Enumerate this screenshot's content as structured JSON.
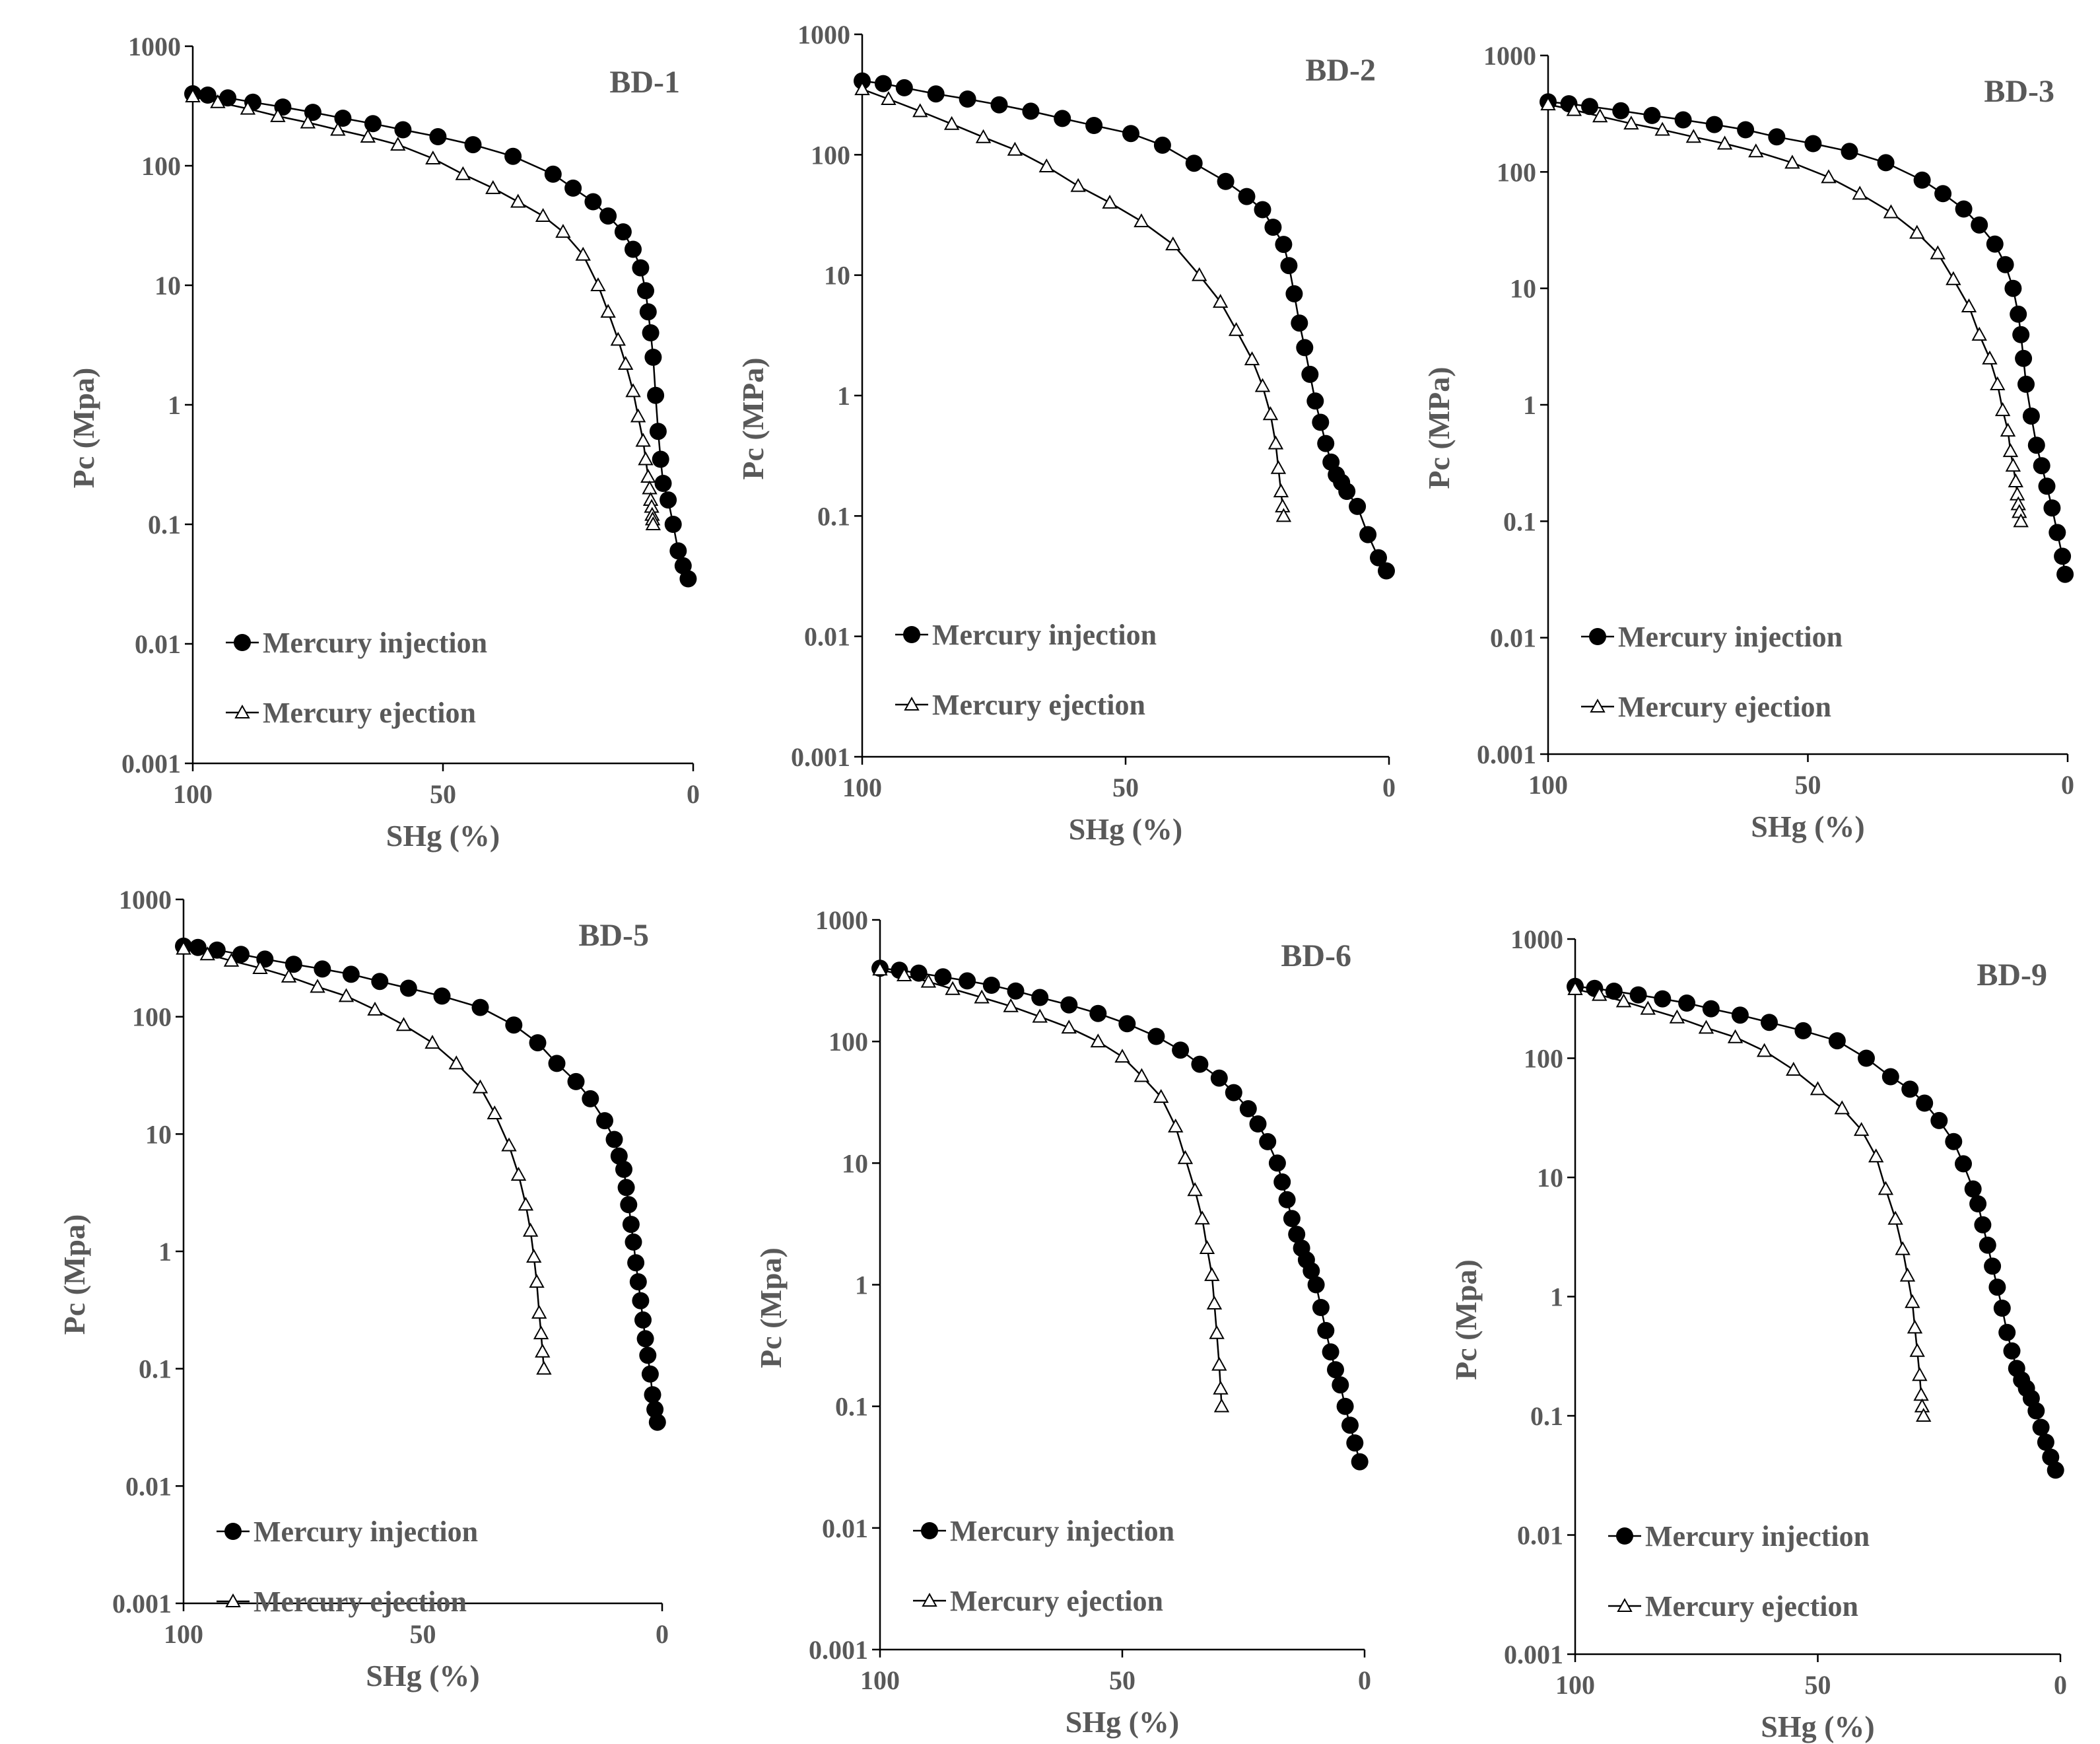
{
  "figure": {
    "name": "mercury-intrusion-capillary-pressure-curves"
  },
  "chart_data": [
    {
      "type": "line",
      "title": "BD-1",
      "xlabel": "SHg (%)",
      "ylabel": "Pc (Mpa)",
      "xlim": [
        100,
        0
      ],
      "ylim": [
        0.001,
        1000
      ],
      "yscale": "log",
      "x_ticks": [
        "100",
        "50",
        "0"
      ],
      "y_ticks": [
        "0.001",
        "0.01",
        "0.1",
        "1",
        "10",
        "100",
        "1000"
      ],
      "legend_position": "bottom-left",
      "series": [
        {
          "name": "Mercury injection",
          "marker": "filled-circle",
          "x": [
            100,
            97,
            93,
            88,
            82,
            76,
            70,
            64,
            58,
            51,
            44,
            36,
            28,
            24,
            20,
            17,
            14,
            12,
            10.5,
            9.5,
            9,
            8.5,
            8,
            7.5,
            7,
            6.5,
            6,
            5,
            4,
            3,
            2,
            1
          ],
          "y": [
            400,
            390,
            370,
            340,
            310,
            280,
            250,
            225,
            200,
            175,
            150,
            120,
            85,
            65,
            50,
            38,
            28,
            20,
            14,
            9,
            6,
            4,
            2.5,
            1.2,
            0.6,
            0.35,
            0.22,
            0.16,
            0.1,
            0.06,
            0.045,
            0.035
          ]
        },
        {
          "name": "Mercury ejection",
          "marker": "hollow-triangle",
          "x": [
            100,
            95,
            89,
            83,
            77,
            71,
            65,
            59,
            52,
            46,
            40,
            35,
            30,
            26,
            22,
            19,
            17,
            15,
            13.5,
            12,
            11,
            10,
            9.5,
            9,
            8.7,
            8.5,
            8.3,
            8.2,
            8.1,
            8
          ],
          "y": [
            380,
            340,
            300,
            260,
            230,
            200,
            175,
            150,
            115,
            85,
            65,
            50,
            38,
            28,
            18,
            10,
            6,
            3.5,
            2.2,
            1.3,
            0.8,
            0.5,
            0.35,
            0.25,
            0.2,
            0.16,
            0.14,
            0.12,
            0.11,
            0.1
          ]
        }
      ]
    },
    {
      "type": "line",
      "title": "BD-2",
      "xlabel": "SHg (%)",
      "ylabel": "Pc  (MPa)",
      "xlim": [
        100,
        0
      ],
      "ylim": [
        0.001,
        1000
      ],
      "yscale": "log",
      "x_ticks": [
        "100",
        "50",
        "0"
      ],
      "y_ticks": [
        "0.001",
        "0.01",
        "0.1",
        "1",
        "10",
        "100",
        "1000"
      ],
      "legend_position": "bottom-left",
      "series": [
        {
          "name": "Mercury injection",
          "marker": "filled-circle",
          "x": [
            100,
            96,
            92,
            86,
            80,
            74,
            68,
            62,
            56,
            49,
            43,
            37,
            31,
            27,
            24,
            22,
            20,
            19,
            18,
            17,
            16,
            15,
            14,
            13,
            12,
            11,
            10,
            9,
            8,
            6,
            4,
            2,
            0.5
          ],
          "y": [
            410,
            390,
            360,
            320,
            290,
            260,
            230,
            200,
            175,
            150,
            120,
            85,
            60,
            45,
            35,
            25,
            18,
            12,
            7,
            4,
            2.5,
            1.5,
            0.9,
            0.6,
            0.4,
            0.28,
            0.22,
            0.19,
            0.16,
            0.12,
            0.07,
            0.045,
            0.035
          ]
        },
        {
          "name": "Mercury ejection",
          "marker": "hollow-triangle",
          "x": [
            100,
            95,
            89,
            83,
            77,
            71,
            65,
            59,
            53,
            47,
            41,
            36,
            32,
            29,
            26,
            24,
            22.5,
            21.5,
            21,
            20.5,
            20.2,
            20
          ],
          "y": [
            350,
            290,
            230,
            180,
            140,
            110,
            80,
            55,
            40,
            28,
            18,
            10,
            6,
            3.5,
            2,
            1.2,
            0.7,
            0.4,
            0.25,
            0.16,
            0.12,
            0.1
          ]
        }
      ]
    },
    {
      "type": "line",
      "title": "BD-3",
      "xlabel": "SHg (%)",
      "ylabel": "Pc  (MPa)",
      "xlim": [
        100,
        0
      ],
      "ylim": [
        0.001,
        1000
      ],
      "yscale": "log",
      "x_ticks": [
        "100",
        "50",
        "0"
      ],
      "y_ticks": [
        "0.001",
        "0.01",
        "0.1",
        "1",
        "10",
        "100",
        "1000"
      ],
      "legend_position": "bottom-left",
      "series": [
        {
          "name": "Mercury injection",
          "marker": "filled-circle",
          "x": [
            100,
            96,
            92,
            86,
            80,
            74,
            68,
            62,
            56,
            49,
            42,
            35,
            28,
            24,
            20,
            17,
            14,
            12,
            10.5,
            9.5,
            9,
            8.5,
            8,
            7,
            6,
            5,
            4,
            3,
            2,
            1,
            0.5
          ],
          "y": [
            400,
            385,
            365,
            335,
            305,
            280,
            255,
            230,
            200,
            175,
            150,
            120,
            85,
            65,
            48,
            35,
            24,
            16,
            10,
            6,
            4,
            2.5,
            1.5,
            0.8,
            0.45,
            0.3,
            0.2,
            0.13,
            0.08,
            0.05,
            0.035
          ]
        },
        {
          "name": "Mercury ejection",
          "marker": "hollow-triangle",
          "x": [
            100,
            95,
            90,
            84,
            78,
            72,
            66,
            60,
            53,
            46,
            40,
            34,
            29,
            25,
            22,
            19,
            17,
            15,
            13.5,
            12.5,
            11.5,
            11,
            10.5,
            10,
            9.7,
            9.5,
            9.3,
            9
          ],
          "y": [
            380,
            340,
            300,
            260,
            230,
            200,
            175,
            150,
            120,
            90,
            65,
            45,
            30,
            20,
            12,
            7,
            4,
            2.5,
            1.5,
            0.9,
            0.6,
            0.4,
            0.3,
            0.22,
            0.17,
            0.14,
            0.12,
            0.1
          ]
        }
      ]
    },
    {
      "type": "line",
      "title": "BD-5",
      "xlabel": "SHg (%)",
      "ylabel": "Pc (Mpa)",
      "xlim": [
        100,
        0
      ],
      "ylim": [
        0.001,
        1000
      ],
      "yscale": "log",
      "x_ticks": [
        "100",
        "50",
        "0"
      ],
      "y_ticks": [
        "0.001",
        "0.01",
        "0.1",
        "1",
        "10",
        "100",
        "1000"
      ],
      "legend_position": "bottom-left",
      "series": [
        {
          "name": "Mercury injection",
          "marker": "filled-circle",
          "x": [
            100,
            97,
            93,
            88,
            83,
            77,
            71,
            65,
            59,
            53,
            46,
            38,
            31,
            26,
            22,
            18,
            15,
            12,
            10,
            9,
            8,
            7.5,
            7,
            6.5,
            6,
            5.5,
            5,
            4.5,
            4,
            3.5,
            3,
            2.5,
            2,
            1.5,
            1
          ],
          "y": [
            400,
            390,
            370,
            340,
            310,
            280,
            255,
            230,
            200,
            175,
            150,
            120,
            85,
            60,
            40,
            28,
            20,
            13,
            9,
            6.5,
            5,
            3.5,
            2.5,
            1.7,
            1.2,
            0.8,
            0.55,
            0.38,
            0.26,
            0.18,
            0.13,
            0.09,
            0.06,
            0.045,
            0.035
          ]
        },
        {
          "name": "Mercury ejection",
          "marker": "hollow-triangle",
          "x": [
            100,
            95,
            90,
            84,
            78,
            72,
            66,
            60,
            54,
            48,
            43,
            38,
            35,
            32,
            30,
            28.5,
            27.5,
            26.8,
            26.2,
            25.7,
            25.3,
            25,
            24.7
          ],
          "y": [
            380,
            340,
            300,
            260,
            220,
            180,
            150,
            115,
            85,
            60,
            40,
            25,
            15,
            8,
            4.5,
            2.5,
            1.5,
            0.9,
            0.55,
            0.3,
            0.2,
            0.14,
            0.1
          ]
        }
      ]
    },
    {
      "type": "line",
      "title": "BD-6",
      "xlabel": "SHg (%)",
      "ylabel": "Pc (Mpa)",
      "xlim": [
        100,
        0
      ],
      "ylim": [
        0.001,
        1000
      ],
      "yscale": "log",
      "x_ticks": [
        "100",
        "50",
        "0"
      ],
      "y_ticks": [
        "0.001",
        "0.01",
        "0.1",
        "1",
        "10",
        "100",
        "1000"
      ],
      "legend_position": "bottom-left",
      "series": [
        {
          "name": "Mercury injection",
          "marker": "filled-circle",
          "x": [
            100,
            96,
            92,
            87,
            82,
            77,
            72,
            67,
            61,
            55,
            49,
            43,
            38,
            34,
            30,
            27,
            24,
            22,
            20,
            18,
            17,
            16,
            15,
            14,
            13,
            12,
            11,
            10,
            9,
            8,
            7,
            6,
            5,
            4,
            3,
            2,
            1
          ],
          "y": [
            400,
            385,
            365,
            340,
            315,
            290,
            260,
            230,
            200,
            170,
            140,
            110,
            85,
            65,
            50,
            38,
            28,
            21,
            15,
            10,
            7,
            5,
            3.5,
            2.6,
            2,
            1.6,
            1.3,
            1,
            0.65,
            0.42,
            0.28,
            0.2,
            0.15,
            0.1,
            0.07,
            0.05,
            0.035
          ]
        },
        {
          "name": "Mercury ejection",
          "marker": "hollow-triangle",
          "x": [
            100,
            95,
            90,
            85,
            79,
            73,
            67,
            61,
            55,
            50,
            46,
            42,
            39,
            37,
            35,
            33.5,
            32.5,
            31.5,
            31,
            30.5,
            30,
            29.7,
            29.5
          ],
          "y": [
            390,
            350,
            310,
            270,
            230,
            195,
            160,
            130,
            100,
            75,
            52,
            35,
            20,
            11,
            6,
            3.5,
            2,
            1.2,
            0.7,
            0.4,
            0.22,
            0.14,
            0.1
          ]
        }
      ]
    },
    {
      "type": "line",
      "title": "BD-9",
      "xlabel": "SHg (%)",
      "ylabel": "Pc (Mpa)",
      "xlim": [
        100,
        0
      ],
      "ylim": [
        0.001,
        1000
      ],
      "yscale": "log",
      "x_ticks": [
        "100",
        "50",
        "0"
      ],
      "y_ticks": [
        "0.001",
        "0.01",
        "0.1",
        "1",
        "10",
        "100",
        "1000"
      ],
      "legend_position": "bottom-left",
      "series": [
        {
          "name": "Mercury injection",
          "marker": "filled-circle",
          "x": [
            100,
            96,
            92,
            87,
            82,
            77,
            72,
            66,
            60,
            53,
            46,
            40,
            35,
            31,
            28,
            25,
            22,
            20,
            18,
            17,
            16,
            15,
            14,
            13,
            12,
            11,
            10,
            9,
            8,
            7,
            6,
            5,
            4,
            3,
            2,
            1
          ],
          "y": [
            400,
            385,
            365,
            340,
            315,
            290,
            260,
            230,
            200,
            170,
            140,
            100,
            70,
            55,
            42,
            30,
            20,
            13,
            8,
            6,
            4,
            2.7,
            1.8,
            1.2,
            0.8,
            0.5,
            0.35,
            0.25,
            0.2,
            0.17,
            0.14,
            0.11,
            0.08,
            0.06,
            0.045,
            0.035
          ]
        },
        {
          "name": "Mercury ejection",
          "marker": "hollow-triangle",
          "x": [
            100,
            95,
            90,
            85,
            79,
            73,
            67,
            61,
            55,
            50,
            45,
            41,
            38,
            36,
            34,
            32.5,
            31.5,
            30.5,
            30,
            29.5,
            29,
            28.7,
            28.5,
            28.2
          ],
          "y": [
            380,
            340,
            300,
            260,
            220,
            180,
            150,
            115,
            80,
            55,
            38,
            25,
            15,
            8,
            4.5,
            2.5,
            1.5,
            0.9,
            0.55,
            0.35,
            0.22,
            0.15,
            0.12,
            0.1
          ]
        }
      ]
    }
  ]
}
